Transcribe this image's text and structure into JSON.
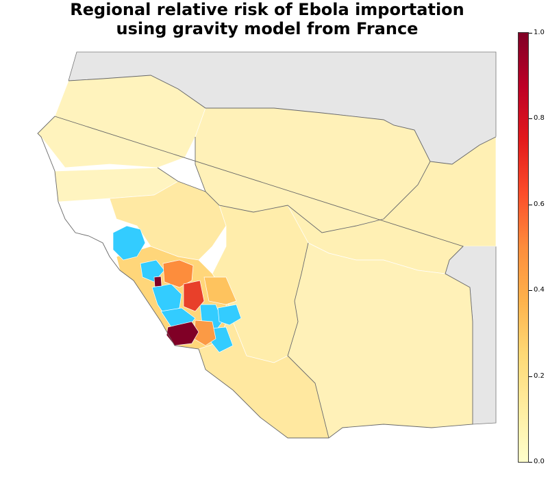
{
  "title": {
    "line1": "Regional relative risk of Ebola importation",
    "line2": "using gravity model from France"
  },
  "colorbar": {
    "colormap": "YlOrRd",
    "range": [
      0.0,
      1.0
    ],
    "ticks": [
      "0.0",
      "0.2",
      "0.4",
      "0.6",
      "0.8",
      "1.0"
    ]
  },
  "legend_colors": {
    "affected_regions": "#33ccff",
    "background_countries": "#e6e6e6",
    "low_risk": "#fff7c0",
    "highest_risk": "#800026"
  }
}
